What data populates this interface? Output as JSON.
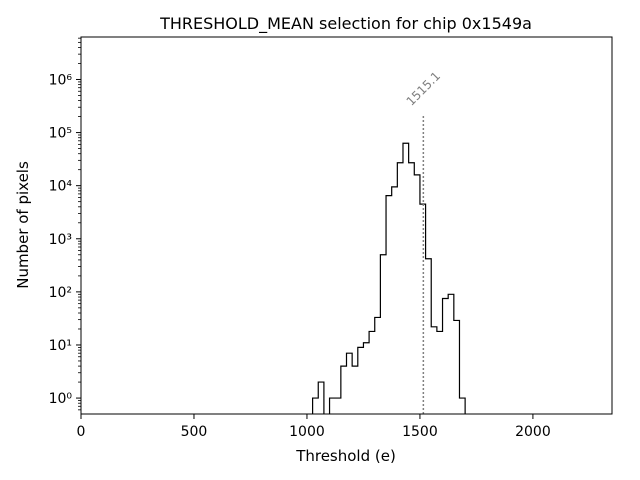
{
  "chart_data": {
    "type": "histogram",
    "title": "THRESHOLD_MEAN selection for chip 0x1549a",
    "xlabel": "Threshold (e)",
    "ylabel": "Number of pixels",
    "xlim": [
      0,
      2350
    ],
    "ylim_log10": [
      -0.3,
      6.8
    ],
    "yscale": "log",
    "x_ticks": [
      0,
      500,
      1000,
      1500,
      2000
    ],
    "x_tick_labels": [
      "0",
      "500",
      "1000",
      "1500",
      "2000"
    ],
    "y_ticks_log10": [
      0,
      1,
      2,
      3,
      4,
      5,
      6
    ],
    "y_tick_labels": [
      "10⁰",
      "10¹",
      "10²",
      "10³",
      "10⁴",
      "10⁵",
      "10⁶"
    ],
    "bin_width": 25,
    "bins": [
      {
        "x0": 1025,
        "count": 1
      },
      {
        "x0": 1050,
        "count": 2
      },
      {
        "x0": 1075,
        "count": 0
      },
      {
        "x0": 1100,
        "count": 1
      },
      {
        "x0": 1125,
        "count": 1
      },
      {
        "x0": 1150,
        "count": 4
      },
      {
        "x0": 1175,
        "count": 7
      },
      {
        "x0": 1200,
        "count": 4
      },
      {
        "x0": 1225,
        "count": 9
      },
      {
        "x0": 1250,
        "count": 11
      },
      {
        "x0": 1275,
        "count": 18
      },
      {
        "x0": 1300,
        "count": 33
      },
      {
        "x0": 1325,
        "count": 500
      },
      {
        "x0": 1350,
        "count": 6500
      },
      {
        "x0": 1375,
        "count": 9500
      },
      {
        "x0": 1400,
        "count": 27000
      },
      {
        "x0": 1425,
        "count": 63000
      },
      {
        "x0": 1450,
        "count": 27000
      },
      {
        "x0": 1475,
        "count": 16000
      },
      {
        "x0": 1500,
        "count": 4500
      },
      {
        "x0": 1525,
        "count": 420
      },
      {
        "x0": 1550,
        "count": 22
      },
      {
        "x0": 1575,
        "count": 18
      },
      {
        "x0": 1600,
        "count": 75
      },
      {
        "x0": 1625,
        "count": 90
      },
      {
        "x0": 1650,
        "count": 29
      },
      {
        "x0": 1675,
        "count": 1
      }
    ],
    "annotation": {
      "label": "1515.1",
      "x": 1515.1,
      "line_top_value": 220000,
      "style": "dotted",
      "color": "#808080"
    },
    "colors": {
      "line": "#000000",
      "annotation": "#808080"
    }
  }
}
